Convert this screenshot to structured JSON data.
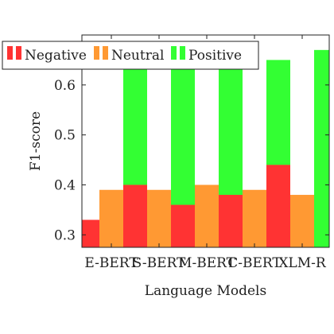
{
  "chart_data": {
    "type": "bar",
    "categories": [
      "E-BERT",
      "S-BERT",
      "M-BERT",
      "C-BERT",
      "XLM-R"
    ],
    "series": [
      {
        "name": "Negative",
        "values": [
          0.33,
          0.4,
          0.36,
          0.38,
          0.44
        ],
        "color": "#ff3333"
      },
      {
        "name": "Neutral",
        "values": [
          0.39,
          0.39,
          0.4,
          0.39,
          0.38
        ],
        "color": "#ff9933"
      },
      {
        "name": "Positive",
        "values": [
          0.64,
          0.64,
          0.64,
          0.65,
          0.67
        ],
        "color": "#33ff33"
      }
    ],
    "xlabel": "Language Models",
    "ylabel": "F1-score",
    "ylim": [
      0.275,
      0.7
    ],
    "yticks": [
      "0.3",
      "0.4",
      "0.5",
      "0.6"
    ],
    "ytick_values": [
      0.3,
      0.4,
      0.5,
      0.6
    ],
    "legend_position": "top",
    "grid": false
  }
}
